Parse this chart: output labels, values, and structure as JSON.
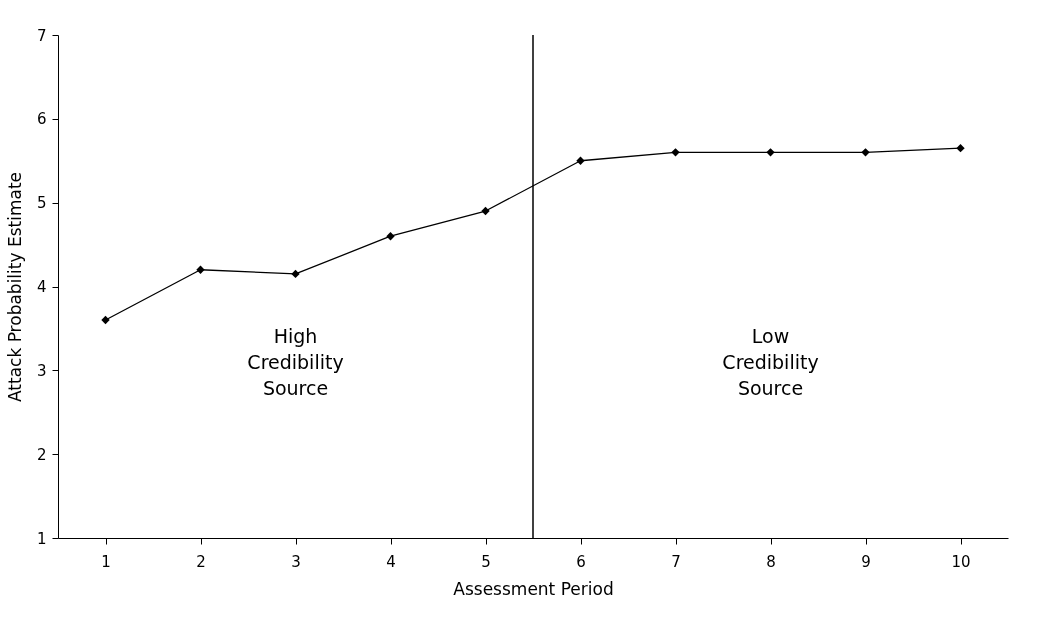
{
  "chart_data": {
    "type": "line",
    "xlabel": "Assessment Period",
    "ylabel": "Attack Probability Estimate",
    "x": [
      1,
      2,
      3,
      4,
      5,
      6,
      7,
      8,
      9,
      10
    ],
    "xlim": [
      0.5,
      10.5
    ],
    "xticks": [
      1,
      2,
      3,
      4,
      5,
      6,
      7,
      8,
      9,
      10
    ],
    "ylim": [
      1,
      7
    ],
    "yticks": [
      1,
      2,
      3,
      4,
      5,
      6,
      7
    ],
    "series": [
      {
        "color": "#000000",
        "values": [
          3.6,
          4.2,
          4.15,
          4.6,
          4.9,
          5.5,
          5.6,
          5.6,
          5.6,
          5.65
        ]
      }
    ],
    "marker": "diamond",
    "line_style": "solid",
    "grid": false,
    "ref_lines": [
      {
        "axis": "x",
        "value": 5.5,
        "color": "#000000"
      }
    ],
    "annotations": [
      "High Credibility Source",
      "Low Credibility Source"
    ]
  }
}
